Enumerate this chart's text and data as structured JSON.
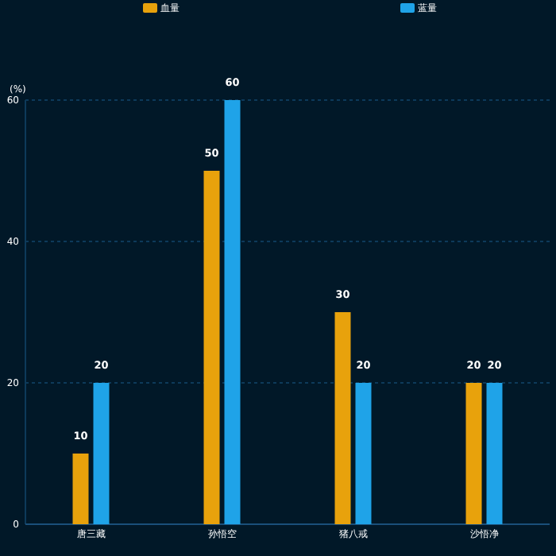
{
  "chart_data": {
    "type": "bar",
    "ylabel": "(%)",
    "categories": [
      "唐三藏",
      "孙悟空",
      "猪八戒",
      "沙悟净"
    ],
    "series": [
      {
        "name": "血量",
        "color": "#e8a20c",
        "values": [
          10,
          50,
          30,
          20
        ]
      },
      {
        "name": "蓝量",
        "color": "#1fa3e8",
        "values": [
          20,
          60,
          20,
          20
        ]
      }
    ],
    "ylim": [
      0,
      60
    ],
    "yticks": [
      0,
      20,
      40,
      60
    ],
    "grid": "y",
    "legend": "top",
    "data_labels": true
  }
}
